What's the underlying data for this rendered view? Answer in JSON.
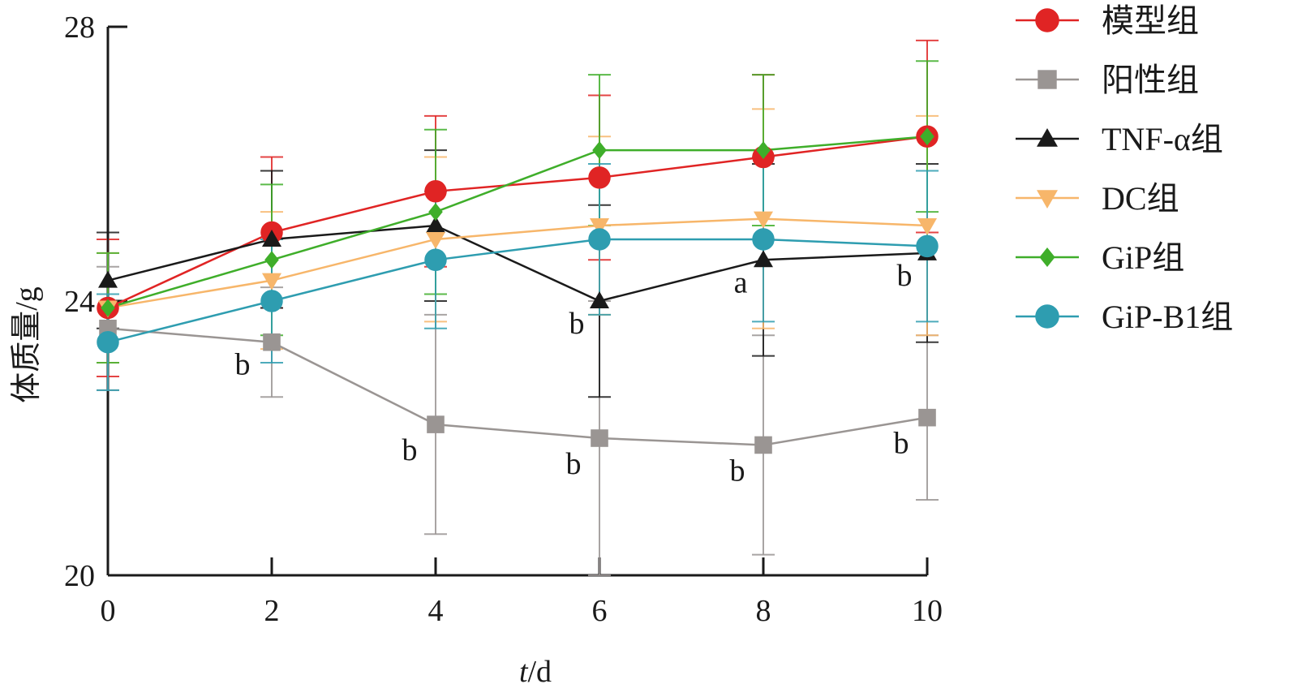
{
  "chart_data": {
    "type": "line",
    "title": "",
    "xlabel_italic": "t",
    "xlabel_unit": "/d",
    "ylabel": "体质量/g",
    "x": [
      0,
      2,
      4,
      6,
      8,
      10
    ],
    "xlim": [
      0,
      10
    ],
    "ylim": [
      20,
      28
    ],
    "x_ticks": [
      "0",
      "2",
      "4",
      "6",
      "8",
      "10"
    ],
    "y_ticks": [
      "20",
      "24",
      "28"
    ],
    "grid": false,
    "legend_position": "top-right, outside plot",
    "series": [
      {
        "name": "模型组",
        "color": "#e02424",
        "marker": "circle",
        "values": [
          23.9,
          25.0,
          25.6,
          25.8,
          26.1,
          26.4
        ],
        "errors": [
          1.0,
          1.1,
          1.1,
          1.2,
          1.2,
          1.4
        ]
      },
      {
        "name": "阳性组",
        "color": "#9a9593",
        "marker": "square",
        "values": [
          23.6,
          23.4,
          22.2,
          22.0,
          21.9,
          22.3
        ],
        "errors": [
          0.9,
          0.8,
          1.6,
          2.0,
          1.6,
          1.2
        ]
      },
      {
        "name": "TNF-α组",
        "color": "#1a1a1a",
        "marker": "triangle-up",
        "values": [
          24.3,
          24.9,
          25.1,
          24.0,
          24.6,
          24.7
        ],
        "errors": [
          0.7,
          1.0,
          1.1,
          1.4,
          1.4,
          1.3
        ]
      },
      {
        "name": "DC组",
        "color": "#f7b66a",
        "marker": "triangle-down",
        "values": [
          23.9,
          24.3,
          24.9,
          25.1,
          25.2,
          25.1
        ],
        "errors": [
          0.8,
          1.0,
          1.2,
          1.3,
          1.6,
          1.6
        ]
      },
      {
        "name": "GiP组",
        "color": "#3fae2a",
        "marker": "diamond",
        "values": [
          23.9,
          24.6,
          25.3,
          26.2,
          26.2,
          26.4
        ],
        "errors": [
          0.8,
          1.1,
          1.2,
          1.1,
          1.1,
          1.1
        ]
      },
      {
        "name": "GiP-B1组",
        "color": "#2e9db0",
        "marker": "circle",
        "values": [
          23.4,
          24.0,
          24.6,
          24.9,
          24.9,
          24.8
        ],
        "errors": [
          0.7,
          0.9,
          1.0,
          1.1,
          1.2,
          1.1
        ]
      }
    ],
    "annotations": [
      {
        "text": "b",
        "x": 2,
        "y": 23.4,
        "near": "阳性组"
      },
      {
        "text": "b",
        "x": 4,
        "y": 22.2,
        "near": "阳性组"
      },
      {
        "text": "b",
        "x": 6,
        "y": 22.0,
        "near": "阳性组"
      },
      {
        "text": "b",
        "x": 8,
        "y": 21.9,
        "near": "阳性组"
      },
      {
        "text": "b",
        "x": 10,
        "y": 22.3,
        "near": "阳性组"
      },
      {
        "text": "b",
        "x": 6,
        "y": 24.0,
        "near": "TNF-α组"
      },
      {
        "text": "a",
        "x": 8,
        "y": 24.6,
        "near": "TNF-α组"
      },
      {
        "text": "b",
        "x": 10,
        "y": 24.7,
        "near": "TNF-α组"
      }
    ]
  }
}
